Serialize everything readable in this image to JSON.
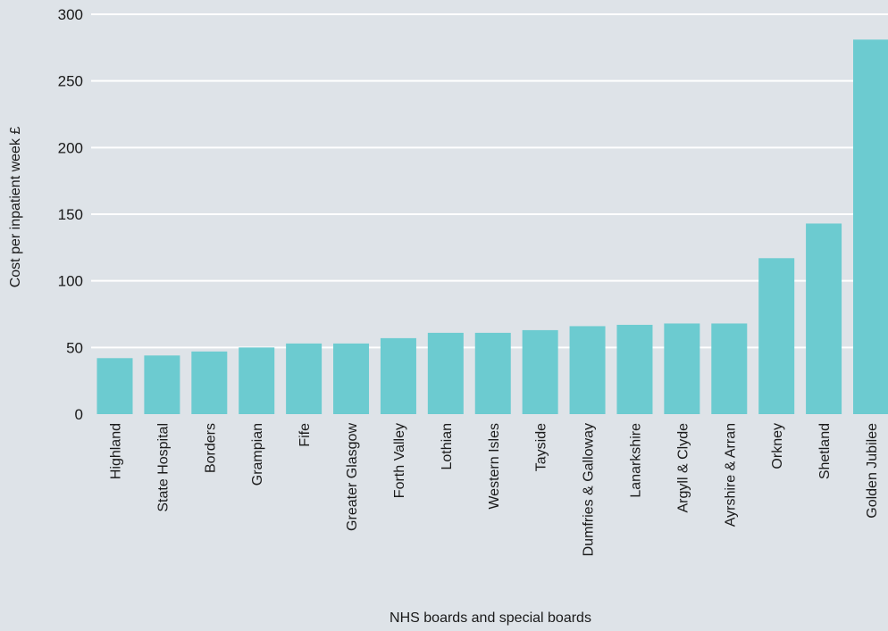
{
  "chart_data": {
    "type": "bar",
    "title": "",
    "xlabel": "NHS boards and special boards",
    "ylabel": "Cost per inpatient week £",
    "ylim": [
      0,
      300
    ],
    "yticks": [
      0,
      50,
      100,
      150,
      200,
      250,
      300
    ],
    "grid": true,
    "categories": [
      "Highland",
      "State Hospital",
      "Borders",
      "Grampian",
      "Fife",
      "Greater Glasgow",
      "Forth Valley",
      "Lothian",
      "Western Isles",
      "Tayside",
      "Dumfries & Galloway",
      "Lanarkshire",
      "Argyll & Clyde",
      "Ayrshire & Arran",
      "Orkney",
      "Shetland",
      "Golden Jubilee"
    ],
    "values": [
      42,
      44,
      47,
      50,
      53,
      53,
      57,
      61,
      61,
      63,
      66,
      67,
      68,
      68,
      117,
      143,
      281
    ],
    "colors": {
      "bar": "#6ccbd0",
      "grid": "#ffffff",
      "background": "#dee3e8",
      "text": "#1a1a1a"
    }
  }
}
